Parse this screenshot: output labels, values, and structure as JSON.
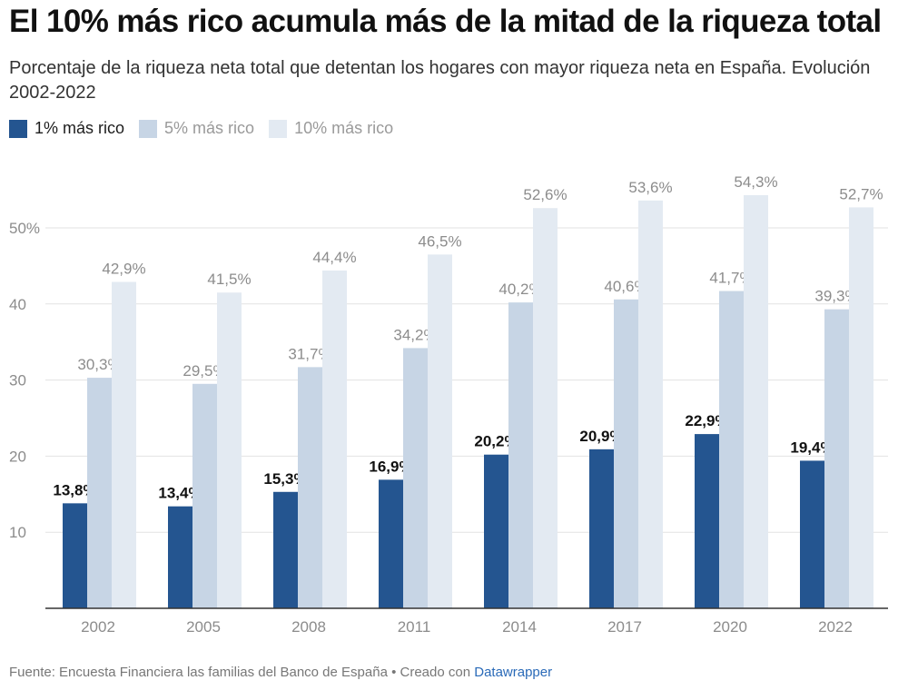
{
  "title": "El 10% más rico acumula más de la mitad de la riqueza total",
  "subtitle": "Porcentaje de la riqueza neta total que detentan los hogares con mayor riqueza neta en España. Evolución 2002-2022",
  "legend": [
    {
      "label": "1% más rico",
      "color": "#245590",
      "text_color": "#1d1d1d"
    },
    {
      "label": "5% más rico",
      "color": "#c7d5e5",
      "text_color": "#9a9a9a"
    },
    {
      "label": "10% más rico",
      "color": "#e3eaf2",
      "text_color": "#9a9a9a"
    }
  ],
  "footer": {
    "source": "Fuente: Encuesta Financiera las familias del Banco de España",
    "separator": " • ",
    "created": "Creado con ",
    "tool": "Datawrapper"
  },
  "chart_data": {
    "type": "bar",
    "categories": [
      "2002",
      "2005",
      "2008",
      "2011",
      "2014",
      "2017",
      "2020",
      "2022"
    ],
    "series": [
      {
        "name": "1% más rico",
        "values": [
          13.8,
          13.4,
          15.3,
          16.9,
          20.2,
          20.9,
          22.9,
          19.4
        ],
        "labels": [
          "13,8%",
          "13,4%",
          "15,3%",
          "16,9%",
          "20,2%",
          "20,9%",
          "22,9%",
          "19,4%"
        ],
        "color": "#245590",
        "label_color": "#111111"
      },
      {
        "name": "5% más rico",
        "values": [
          30.3,
          29.5,
          31.7,
          34.2,
          40.2,
          40.6,
          41.7,
          39.3
        ],
        "labels": [
          "30,3%",
          "29,5%",
          "31,7%",
          "34,2%",
          "40,2%",
          "40,6%",
          "41,7%",
          "39,3%"
        ],
        "color": "#c7d5e5",
        "label_color": "#8c8c8c"
      },
      {
        "name": "10% más rico",
        "values": [
          42.9,
          41.5,
          44.4,
          46.5,
          52.6,
          53.6,
          54.3,
          52.7
        ],
        "labels": [
          "42,9%",
          "41,5%",
          "44,4%",
          "46,5%",
          "52,6%",
          "53,6%",
          "54,3%",
          "52,7%"
        ],
        "color": "#e3eaf2",
        "label_color": "#8c8c8c"
      }
    ],
    "yticks": [
      10,
      20,
      30,
      40,
      50
    ],
    "ytick_labels": [
      "10",
      "20",
      "30",
      "40",
      "50%"
    ],
    "ylim": [
      0,
      55
    ],
    "grid": true,
    "legend_position": "top-left"
  }
}
